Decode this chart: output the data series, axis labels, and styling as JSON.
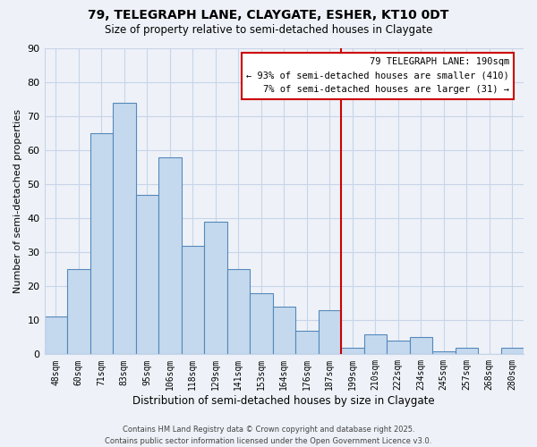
{
  "title1": "79, TELEGRAPH LANE, CLAYGATE, ESHER, KT10 0DT",
  "title2": "Size of property relative to semi-detached houses in Claygate",
  "xlabel": "Distribution of semi-detached houses by size in Claygate",
  "ylabel": "Number of semi-detached properties",
  "bin_labels": [
    "48sqm",
    "60sqm",
    "71sqm",
    "83sqm",
    "95sqm",
    "106sqm",
    "118sqm",
    "129sqm",
    "141sqm",
    "153sqm",
    "164sqm",
    "176sqm",
    "187sqm",
    "199sqm",
    "210sqm",
    "222sqm",
    "234sqm",
    "245sqm",
    "257sqm",
    "268sqm",
    "280sqm"
  ],
  "bar_values": [
    11,
    25,
    65,
    74,
    47,
    58,
    32,
    39,
    25,
    18,
    14,
    7,
    13,
    2,
    6,
    4,
    5,
    1,
    2,
    0,
    2
  ],
  "bar_color_blue": "#c5d9ee",
  "bar_edge_color": "#5588bb",
  "vline_color": "#cc0000",
  "vline_x_idx": 12,
  "annotation_title": "79 TELEGRAPH LANE: 190sqm",
  "annotation_line1": "← 93% of semi-detached houses are smaller (410)",
  "annotation_line2": "7% of semi-detached houses are larger (31) →",
  "ylim": [
    0,
    90
  ],
  "yticks": [
    0,
    10,
    20,
    30,
    40,
    50,
    60,
    70,
    80,
    90
  ],
  "footer1": "Contains HM Land Registry data © Crown copyright and database right 2025.",
  "footer2": "Contains public sector information licensed under the Open Government Licence v3.0.",
  "bg_color": "#eef2f8",
  "grid_color": "#c8d4e8",
  "ann_box_color": "#ffffff",
  "ann_edge_color": "#cc0000"
}
